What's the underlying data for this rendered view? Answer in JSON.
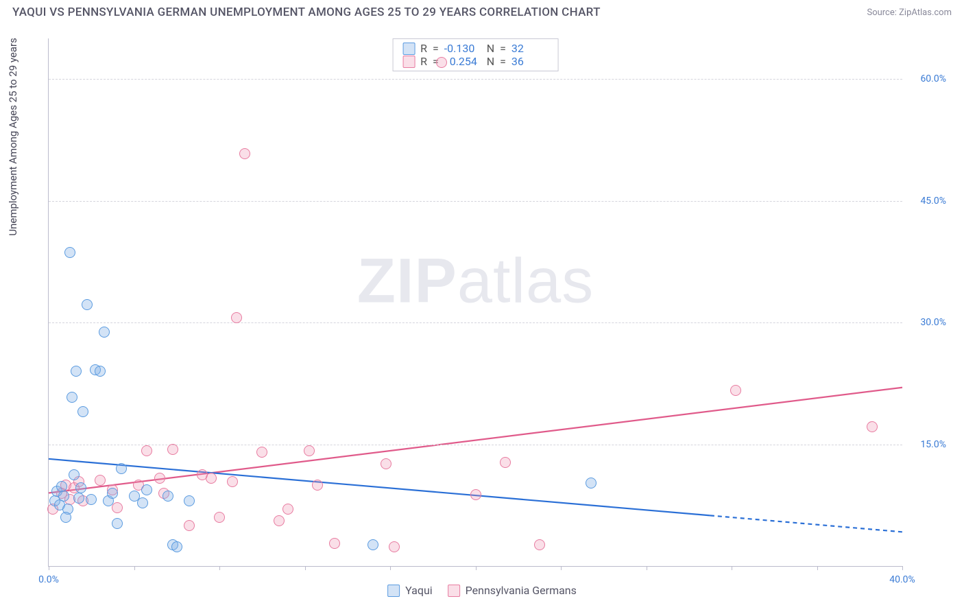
{
  "title": "YAQUI VS PENNSYLVANIA GERMAN UNEMPLOYMENT AMONG AGES 25 TO 29 YEARS CORRELATION CHART",
  "source": "Source: ZipAtlas.com",
  "ylabel": "Unemployment Among Ages 25 to 29 years",
  "watermark_bold": "ZIP",
  "watermark_light": "atlas",
  "chart": {
    "type": "scatter",
    "xlim": [
      0,
      40
    ],
    "ylim": [
      0,
      65
    ],
    "x_ticks_minor": [
      0,
      4,
      8,
      12,
      16,
      20,
      24,
      28,
      32,
      36,
      40
    ],
    "x_tick_labels": [
      {
        "pos": 0,
        "label": "0.0%"
      },
      {
        "pos": 40,
        "label": "40.0%"
      }
    ],
    "y_gridlines": [
      15,
      30,
      45,
      60
    ],
    "y_tick_labels": [
      {
        "pos": 15,
        "label": "15.0%"
      },
      {
        "pos": 30,
        "label": "30.0%"
      },
      {
        "pos": 45,
        "label": "45.0%"
      },
      {
        "pos": 60,
        "label": "60.0%"
      }
    ],
    "grid_color": "#d4d4dc",
    "axis_color": "#bbbbcc",
    "background_color": "#ffffff"
  },
  "series": {
    "yaqui": {
      "label": "Yaqui",
      "color_stroke": "#5a9be0",
      "color_fill": "rgba(130,175,230,0.35)",
      "line_color": "#2a6fd6",
      "R": "-0.130",
      "N": "32",
      "trend": {
        "x1": 0,
        "y1": 13.2,
        "x2": 40,
        "y2": 4.2,
        "extrapolate_from_x": 31
      },
      "points": [
        [
          0.3,
          8.0
        ],
        [
          0.4,
          9.2
        ],
        [
          0.5,
          7.5
        ],
        [
          0.6,
          9.8
        ],
        [
          0.7,
          8.6
        ],
        [
          0.9,
          7.0
        ],
        [
          1.0,
          38.6
        ],
        [
          1.1,
          20.8
        ],
        [
          1.2,
          11.2
        ],
        [
          1.3,
          24.0
        ],
        [
          1.4,
          8.4
        ],
        [
          1.6,
          19.0
        ],
        [
          1.8,
          32.2
        ],
        [
          2.2,
          24.2
        ],
        [
          2.4,
          24.0
        ],
        [
          2.0,
          8.2
        ],
        [
          2.6,
          28.8
        ],
        [
          2.8,
          8.0
        ],
        [
          3.0,
          9.0
        ],
        [
          3.2,
          5.2
        ],
        [
          3.4,
          12.0
        ],
        [
          4.0,
          8.6
        ],
        [
          4.4,
          7.8
        ],
        [
          4.6,
          9.4
        ],
        [
          5.6,
          8.6
        ],
        [
          5.8,
          2.6
        ],
        [
          6.0,
          2.4
        ],
        [
          6.6,
          8.0
        ],
        [
          15.2,
          2.6
        ],
        [
          25.4,
          10.2
        ],
        [
          0.8,
          6.0
        ],
        [
          1.5,
          9.6
        ]
      ]
    },
    "penn": {
      "label": "Pennsylvania Germans",
      "color_stroke": "#e87ba0",
      "color_fill": "rgba(240,150,180,0.3)",
      "line_color": "#e05a8a",
      "R": "0.254",
      "N": "36",
      "trend": {
        "x1": 0,
        "y1": 9.0,
        "x2": 40,
        "y2": 22.0
      },
      "points": [
        [
          0.2,
          7.0
        ],
        [
          0.6,
          9.0
        ],
        [
          0.8,
          10.0
        ],
        [
          1.0,
          8.2
        ],
        [
          1.2,
          9.6
        ],
        [
          1.4,
          10.4
        ],
        [
          1.6,
          8.0
        ],
        [
          2.4,
          10.6
        ],
        [
          3.0,
          9.4
        ],
        [
          3.2,
          7.2
        ],
        [
          4.2,
          10.0
        ],
        [
          4.6,
          14.2
        ],
        [
          5.2,
          10.8
        ],
        [
          5.4,
          9.0
        ],
        [
          5.8,
          14.4
        ],
        [
          6.6,
          5.0
        ],
        [
          7.2,
          11.2
        ],
        [
          7.6,
          10.8
        ],
        [
          8.0,
          6.0
        ],
        [
          8.6,
          10.4
        ],
        [
          8.8,
          30.6
        ],
        [
          9.2,
          50.8
        ],
        [
          10.0,
          14.0
        ],
        [
          10.8,
          5.6
        ],
        [
          11.2,
          7.0
        ],
        [
          12.2,
          14.2
        ],
        [
          12.6,
          10.0
        ],
        [
          13.4,
          2.8
        ],
        [
          15.8,
          12.6
        ],
        [
          16.2,
          2.4
        ],
        [
          18.4,
          62.0
        ],
        [
          20.0,
          8.8
        ],
        [
          21.4,
          12.8
        ],
        [
          23.0,
          2.6
        ],
        [
          32.2,
          21.6
        ],
        [
          38.6,
          17.2
        ]
      ]
    }
  },
  "stats_labels": {
    "R": "R",
    "eq": "=",
    "N": "N"
  },
  "marker_radius": 8
}
